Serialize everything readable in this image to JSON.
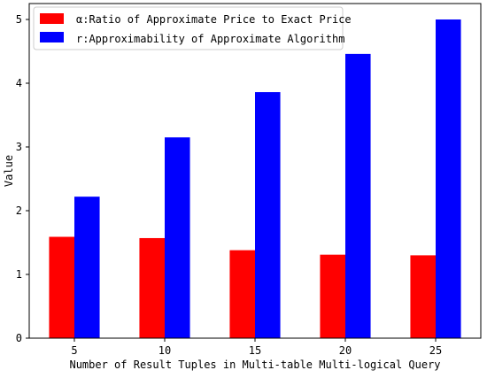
{
  "chart_data": {
    "type": "bar",
    "categories": [
      "5",
      "10",
      "15",
      "20",
      "25"
    ],
    "series": [
      {
        "name": "α:Ratio of Approximate Price to Exact Price",
        "color": "#ff0000",
        "values": [
          1.59,
          1.57,
          1.38,
          1.31,
          1.3
        ]
      },
      {
        "name": "r:Approximability of Approximate Algorithm",
        "color": "#0000ff",
        "values": [
          2.22,
          3.15,
          3.86,
          4.46,
          5.0
        ]
      }
    ],
    "xlabel": "Number of Result Tuples in Multi-table Multi-logical Query",
    "ylabel": "Value",
    "ylim": [
      0,
      5.25
    ],
    "yticks": [
      0,
      1,
      2,
      3,
      4,
      5
    ],
    "legend_position": "top-left",
    "grid": false
  }
}
